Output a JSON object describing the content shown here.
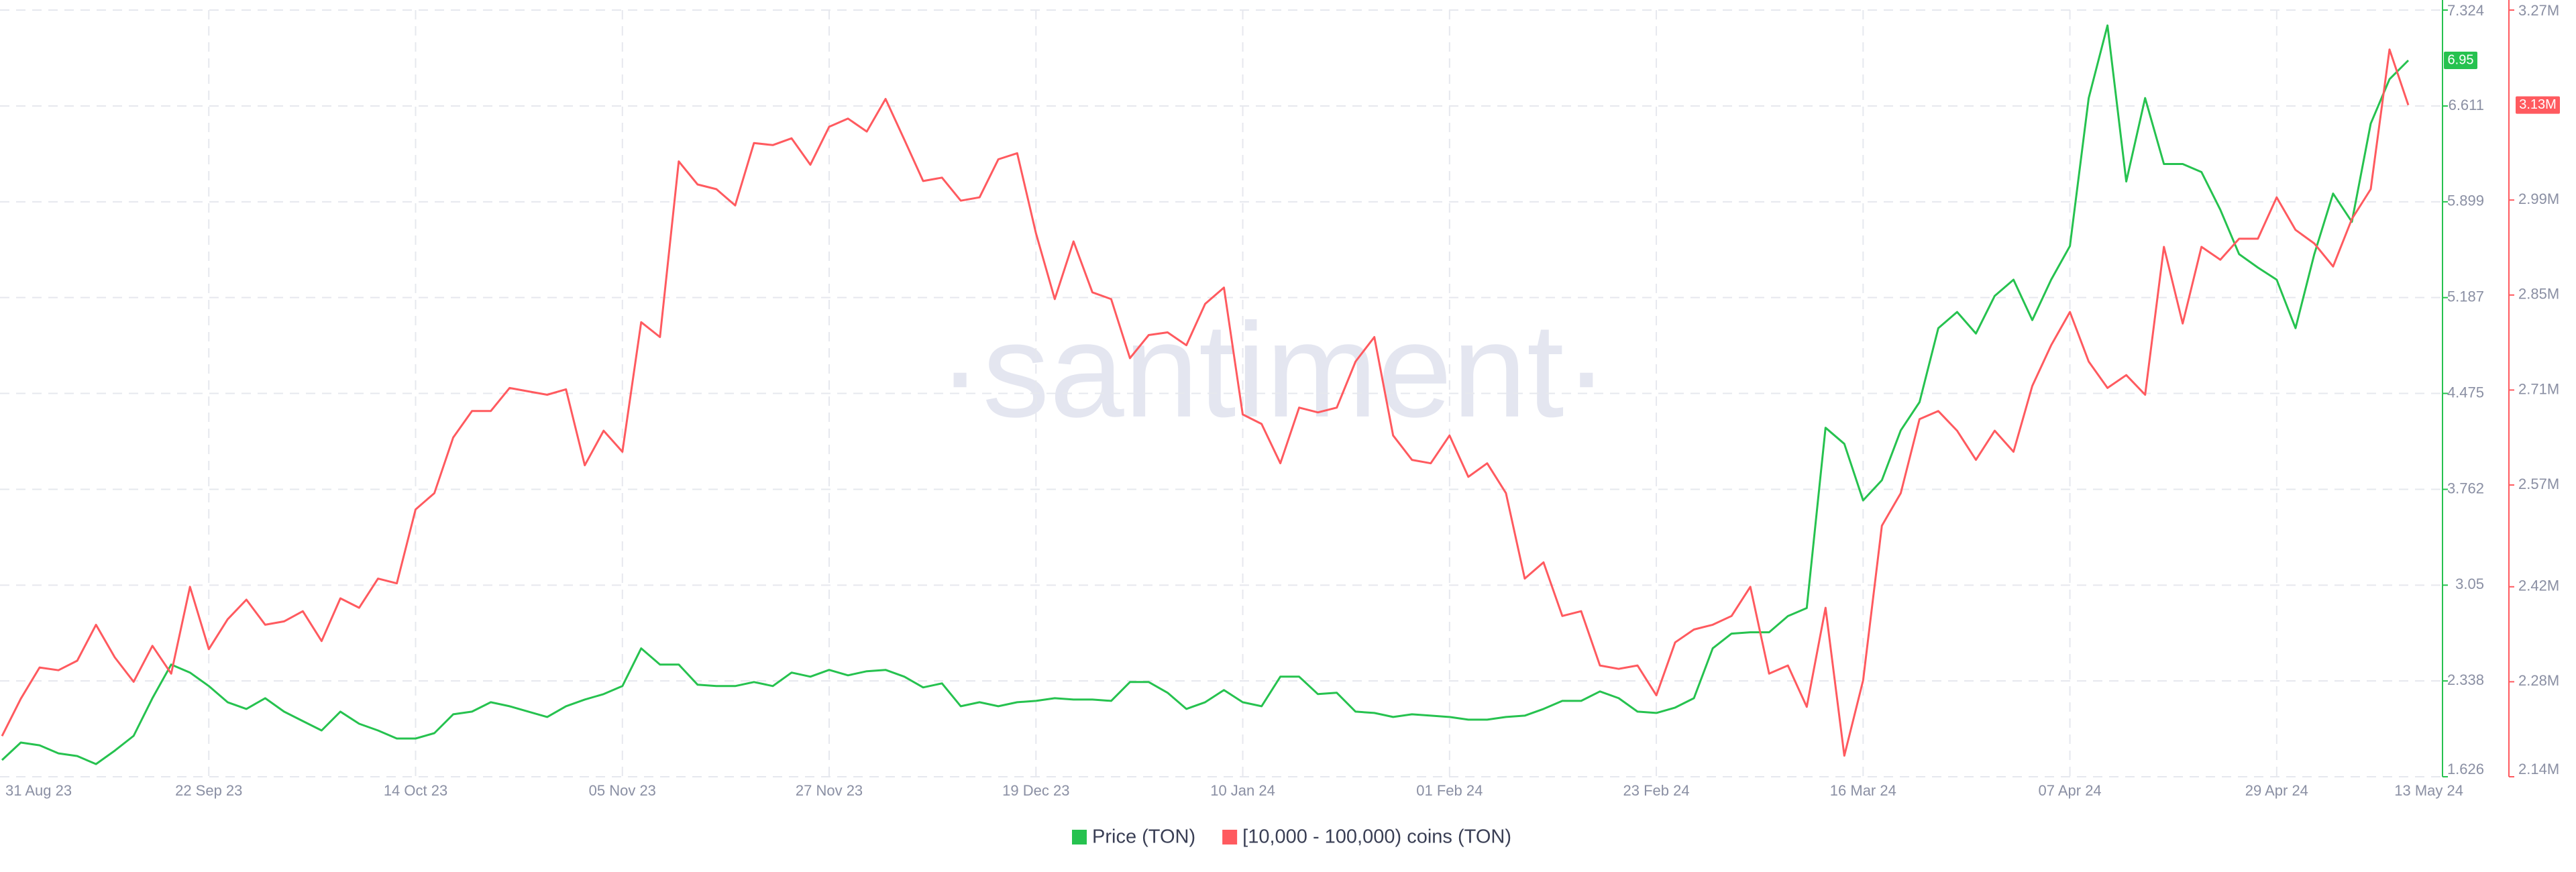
{
  "chart_data": {
    "type": "line",
    "watermark": "·santiment·",
    "categories": [
      "31 Aug 23",
      null,
      null,
      null,
      null,
      null,
      null,
      null,
      null,
      null,
      null,
      "22 Sep 23",
      null,
      null,
      null,
      null,
      null,
      null,
      null,
      null,
      null,
      null,
      "14 Oct 23",
      null,
      null,
      null,
      null,
      null,
      null,
      null,
      null,
      null,
      null,
      "05 Nov 23",
      null,
      null,
      null,
      null,
      null,
      null,
      null,
      null,
      null,
      null,
      "27 Nov 23",
      null,
      null,
      null,
      null,
      null,
      null,
      null,
      null,
      null,
      null,
      "19 Dec 23",
      null,
      null,
      null,
      null,
      null,
      null,
      null,
      null,
      null,
      null,
      "10 Jan 24",
      null,
      null,
      null,
      null,
      null,
      null,
      null,
      null,
      null,
      null,
      "01 Feb 24",
      null,
      null,
      null,
      null,
      null,
      null,
      null,
      null,
      null,
      null,
      "23 Feb 24",
      null,
      null,
      null,
      null,
      null,
      null,
      null,
      null,
      null,
      null,
      "16 Mar 24",
      null,
      null,
      null,
      null,
      null,
      null,
      null,
      null,
      null,
      null,
      "07 Apr 24",
      null,
      null,
      null,
      null,
      null,
      null,
      null,
      null,
      null,
      null,
      "29 Apr 24",
      null,
      null,
      null,
      null,
      null,
      null,
      "13 May 24"
    ],
    "ylim": [
      1.626,
      7.324
    ],
    "yticks": [
      1.626,
      2.338,
      3.05,
      3.762,
      4.475,
      5.187,
      5.899,
      6.611,
      7.324
    ],
    "y2lim": [
      2140000,
      3270000
    ],
    "y2ticks": [
      {
        "value": 2140000,
        "label": "2.14M"
      },
      {
        "value": 2280000,
        "label": "2.28M"
      },
      {
        "value": 2420000,
        "label": "2.42M"
      },
      {
        "value": 2570000,
        "label": "2.57M"
      },
      {
        "value": 2710000,
        "label": "2.71M"
      },
      {
        "value": 2850000,
        "label": "2.85M"
      },
      {
        "value": 2990000,
        "label": "2.99M"
      },
      {
        "value": 3270000,
        "label": "3.27M"
      }
    ],
    "grid": true,
    "series": [
      {
        "name": "Price (TON)",
        "color": "#26c24f",
        "axis": "y",
        "current_label": "6.95",
        "values": [
          1.75,
          1.88,
          1.86,
          1.8,
          1.78,
          1.72,
          1.82,
          1.93,
          2.21,
          2.46,
          2.4,
          2.3,
          2.18,
          2.13,
          2.21,
          2.11,
          2.04,
          1.97,
          2.11,
          2.02,
          1.97,
          1.91,
          1.91,
          1.95,
          2.09,
          2.11,
          2.18,
          2.15,
          2.11,
          2.07,
          2.15,
          2.2,
          2.24,
          2.3,
          2.58,
          2.46,
          2.46,
          2.31,
          2.3,
          2.3,
          2.33,
          2.3,
          2.4,
          2.37,
          2.42,
          2.38,
          2.41,
          2.42,
          2.37,
          2.29,
          2.32,
          2.15,
          2.18,
          2.15,
          2.18,
          2.19,
          2.21,
          2.2,
          2.2,
          2.19,
          2.33,
          2.33,
          2.25,
          2.13,
          2.18,
          2.27,
          2.18,
          2.15,
          2.37,
          2.37,
          2.24,
          2.25,
          2.11,
          2.1,
          2.07,
          2.09,
          2.08,
          2.07,
          2.05,
          2.05,
          2.07,
          2.08,
          2.13,
          2.19,
          2.19,
          2.26,
          2.21,
          2.11,
          2.1,
          2.14,
          2.21,
          2.58,
          2.69,
          2.7,
          2.7,
          2.82,
          2.88,
          4.22,
          4.1,
          3.68,
          3.83,
          4.2,
          4.41,
          4.96,
          5.08,
          4.92,
          5.2,
          5.32,
          5.02,
          5.32,
          5.57,
          6.67,
          7.21,
          6.05,
          6.67,
          6.18,
          6.18,
          6.12,
          5.84,
          5.51,
          5.41,
          5.32,
          4.96,
          5.51,
          5.96,
          5.75,
          6.48,
          6.81,
          6.95
        ]
      },
      {
        "name": "[10,000 - 100,000) coins (TON)",
        "color": "#ff5a5f",
        "axis": "y2",
        "current_label": "3.13M",
        "values": [
          2200000,
          2255000,
          2301000,
          2297000,
          2311000,
          2364000,
          2316000,
          2280000,
          2333000,
          2292000,
          2420000,
          2328000,
          2372000,
          2401000,
          2364000,
          2369000,
          2384000,
          2340000,
          2403000,
          2389000,
          2432000,
          2425000,
          2534000,
          2558000,
          2640000,
          2679000,
          2679000,
          2713000,
          2708000,
          2703000,
          2711000,
          2599000,
          2650000,
          2619000,
          2810000,
          2788000,
          3047000,
          3013000,
          3006000,
          2982000,
          3074000,
          3071000,
          3081000,
          3042000,
          3098000,
          3110000,
          3091000,
          3139000,
          3079000,
          3018000,
          3023000,
          2989000,
          2994000,
          3050000,
          3059000,
          2941000,
          2844000,
          2929000,
          2854000,
          2844000,
          2757000,
          2791000,
          2795000,
          2776000,
          2837000,
          2861000,
          2674000,
          2660000,
          2602000,
          2684000,
          2677000,
          2684000,
          2752000,
          2788000,
          2643000,
          2607000,
          2602000,
          2643000,
          2582000,
          2602000,
          2558000,
          2432000,
          2456000,
          2377000,
          2384000,
          2304000,
          2299000,
          2304000,
          2260000,
          2338000,
          2357000,
          2364000,
          2377000,
          2420000,
          2292000,
          2304000,
          2243000,
          2389000,
          2171000,
          2282000,
          2510000,
          2558000,
          2667000,
          2679000,
          2650000,
          2607000,
          2650000,
          2619000,
          2716000,
          2776000,
          2825000,
          2752000,
          2713000,
          2732000,
          2703000,
          2921000,
          2808000,
          2921000,
          2902000,
          2933000,
          2933000,
          2994000,
          2946000,
          2926000,
          2892000,
          2962000,
          3006000,
          3212000,
          3130000
        ]
      }
    ]
  }
}
